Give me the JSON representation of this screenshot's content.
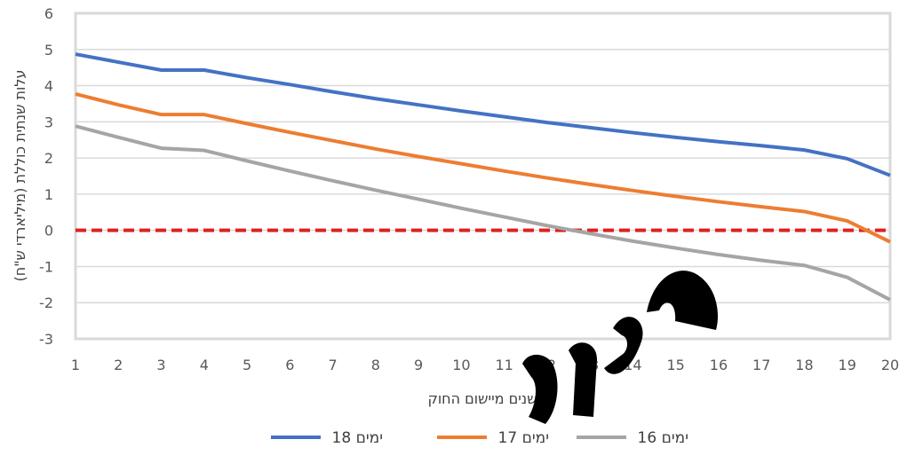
{
  "chart_data": {
    "type": "line",
    "title": "",
    "xlabel": "שנים מיישום החוק",
    "ylabel": "עלות שנתית כוללת (מיליארדי ש\"ח)",
    "x": [
      1,
      2,
      3,
      4,
      5,
      6,
      7,
      8,
      9,
      10,
      11,
      12,
      13,
      14,
      15,
      16,
      17,
      18,
      19,
      20
    ],
    "ylim": [
      -3,
      6
    ],
    "yticks": [
      -3,
      -2,
      -1,
      0,
      1,
      2,
      3,
      4,
      5,
      6
    ],
    "grid": true,
    "legend_position": "bottom",
    "zero_line": {
      "value": 0,
      "color": "#e02020",
      "style": "dashed"
    },
    "watermark": "טיוטה",
    "series": [
      {
        "name": "18 ימים",
        "color": "#4472c4",
        "values": [
          4.87,
          4.65,
          4.43,
          4.43,
          4.22,
          4.03,
          3.83,
          3.64,
          3.47,
          3.3,
          3.14,
          2.98,
          2.84,
          2.7,
          2.57,
          2.45,
          2.34,
          2.22,
          1.98,
          1.52
        ]
      },
      {
        "name": "17 ימים",
        "color": "#ed7d31",
        "values": [
          3.77,
          3.47,
          3.2,
          3.2,
          2.95,
          2.71,
          2.48,
          2.25,
          2.04,
          1.84,
          1.64,
          1.45,
          1.27,
          1.1,
          0.94,
          0.79,
          0.65,
          0.52,
          0.26,
          -0.32
        ]
      },
      {
        "name": "16 ימים",
        "color": "#a5a5a5",
        "values": [
          2.88,
          2.57,
          2.27,
          2.21,
          1.92,
          1.64,
          1.37,
          1.11,
          0.86,
          0.61,
          0.37,
          0.13,
          -0.09,
          -0.3,
          -0.49,
          -0.67,
          -0.83,
          -0.97,
          -1.3,
          -1.92
        ]
      }
    ]
  }
}
